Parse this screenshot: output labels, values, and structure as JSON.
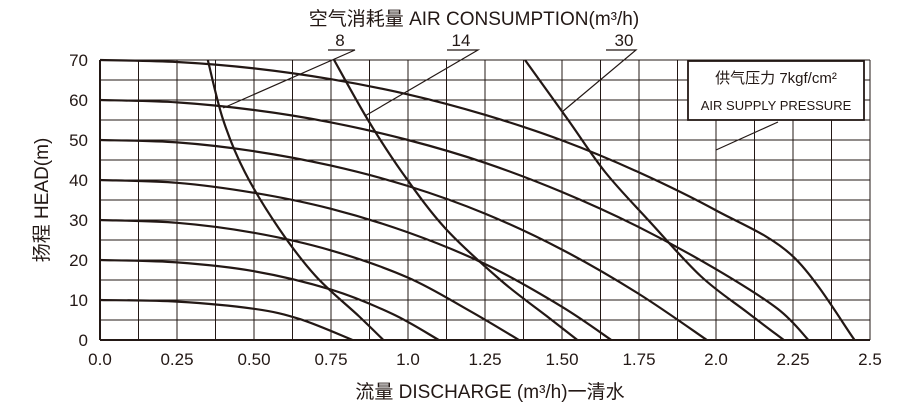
{
  "chart_data": {
    "type": "line",
    "title": "空气消耗量 AIR CONSUMPTION(m³/h)",
    "xlabel": "流量 DISCHARGE (m³/h)一清水",
    "ylabel": "扬程 HEAD(m)",
    "xlim": [
      0,
      2.5
    ],
    "ylim": [
      0,
      70
    ],
    "grid": true,
    "x_ticks": [
      0,
      0.25,
      0.5,
      0.75,
      1.0,
      1.25,
      1.5,
      1.75,
      2.0,
      2.25,
      2.5
    ],
    "x_tick_labels": [
      "0.0",
      "0.25",
      "0.50",
      "0.75",
      "1.0",
      "1.25",
      "1.50",
      "1.75",
      "2.0",
      "2.25",
      "2.5"
    ],
    "y_ticks": [
      0,
      10,
      20,
      30,
      40,
      50,
      60,
      70
    ],
    "y_tick_labels": [
      "0",
      "10",
      "20",
      "30",
      "40",
      "50",
      "60",
      "70"
    ],
    "air_supply_pressure_curves": [
      {
        "points": [
          [
            0,
            10
          ],
          [
            0.25,
            9.6
          ],
          [
            0.5,
            7.8
          ],
          [
            0.65,
            5.2
          ],
          [
            0.82,
            0
          ]
        ]
      },
      {
        "points": [
          [
            0,
            20
          ],
          [
            0.25,
            19.4
          ],
          [
            0.5,
            17.2
          ],
          [
            0.75,
            12.6
          ],
          [
            0.95,
            6.5
          ],
          [
            1.1,
            0
          ]
        ]
      },
      {
        "points": [
          [
            0,
            30
          ],
          [
            0.25,
            29.3
          ],
          [
            0.5,
            26.8
          ],
          [
            0.75,
            22.4
          ],
          [
            1.0,
            15.6
          ],
          [
            1.2,
            7.3
          ],
          [
            1.36,
            0
          ]
        ]
      },
      {
        "points": [
          [
            0,
            40
          ],
          [
            0.25,
            39.3
          ],
          [
            0.5,
            36.8
          ],
          [
            0.75,
            32.8
          ],
          [
            1.0,
            26.9
          ],
          [
            1.25,
            19.0
          ],
          [
            1.5,
            8.3
          ],
          [
            1.66,
            0
          ]
        ]
      },
      {
        "points": [
          [
            0,
            50
          ],
          [
            0.25,
            49.4
          ],
          [
            0.5,
            47.2
          ],
          [
            0.75,
            43.6
          ],
          [
            1.0,
            38.5
          ],
          [
            1.25,
            31.6
          ],
          [
            1.5,
            22.6
          ],
          [
            1.75,
            11.5
          ],
          [
            1.97,
            0
          ]
        ]
      },
      {
        "points": [
          [
            0,
            60
          ],
          [
            0.25,
            59.4
          ],
          [
            0.5,
            57.5
          ],
          [
            0.75,
            54.4
          ],
          [
            1.0,
            50.0
          ],
          [
            1.25,
            44.3
          ],
          [
            1.5,
            37.0
          ],
          [
            1.75,
            28.2
          ],
          [
            2.0,
            17.7
          ],
          [
            2.2,
            7.8
          ],
          [
            2.3,
            0
          ]
        ]
      },
      {
        "points": [
          [
            0,
            70
          ],
          [
            0.25,
            69.5
          ],
          [
            0.5,
            67.9
          ],
          [
            0.75,
            65.2
          ],
          [
            1.0,
            61.4
          ],
          [
            1.25,
            56.3
          ],
          [
            1.5,
            49.9
          ],
          [
            1.75,
            41.9
          ],
          [
            2.0,
            32.4
          ],
          [
            2.25,
            20.9
          ],
          [
            2.45,
            0
          ]
        ]
      }
    ],
    "air_consumption_curves": [
      {
        "label": "8",
        "points": [
          [
            0.35,
            70
          ],
          [
            0.4,
            55
          ],
          [
            0.47,
            42
          ],
          [
            0.58,
            28
          ],
          [
            0.7,
            16
          ],
          [
            0.84,
            6
          ],
          [
            0.92,
            0
          ]
        ]
      },
      {
        "label": "14",
        "points": [
          [
            0.76,
            70
          ],
          [
            0.87,
            55
          ],
          [
            0.98,
            42
          ],
          [
            1.12,
            28
          ],
          [
            1.3,
            15
          ],
          [
            1.45,
            6
          ],
          [
            1.55,
            0
          ]
        ]
      },
      {
        "label": "30",
        "points": [
          [
            1.38,
            70
          ],
          [
            1.52,
            55
          ],
          [
            1.64,
            42
          ],
          [
            1.78,
            30
          ],
          [
            1.95,
            16
          ],
          [
            2.1,
            7
          ],
          [
            2.22,
            0
          ]
        ]
      }
    ],
    "air_consumption_labels": [
      "8",
      "14",
      "30"
    ],
    "annotation_title": "供气压力 7kgf/cm²",
    "annotation_subtitle": "AIR SUPPLY PRESSURE"
  },
  "colors": {
    "curve": "#231815",
    "grid": "#231815",
    "background": "#ffffff"
  }
}
